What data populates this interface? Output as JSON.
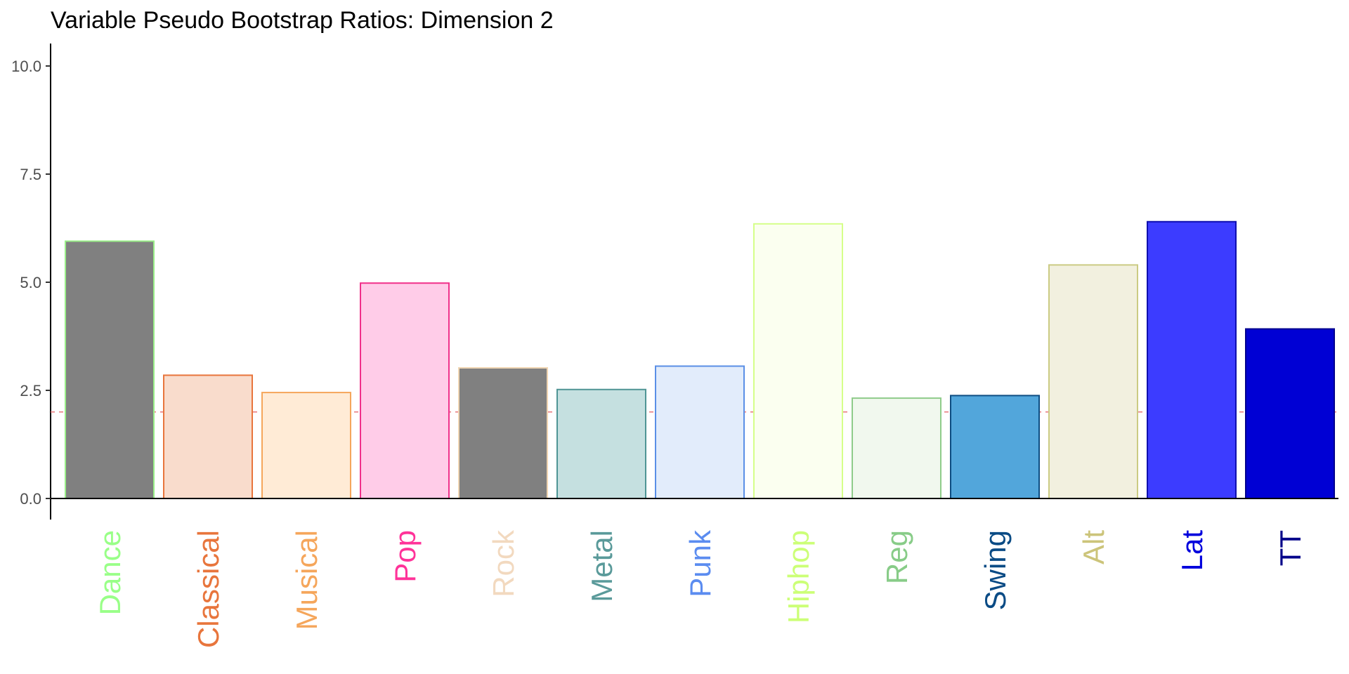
{
  "chart_data": {
    "type": "bar",
    "title": "Variable Pseudo Bootstrap Ratios: Dimension 2",
    "xlabel": "",
    "ylabel": "",
    "ylim": [
      -0.95,
      10.6
    ],
    "yticks": [
      0.0,
      2.5,
      5.0,
      7.5,
      10.0
    ],
    "ytick_labels": [
      "0.0",
      "2.5",
      "5.0",
      "7.5",
      "10.0"
    ],
    "threshold": 2,
    "threshold_color": "#E8767A",
    "grid": false,
    "categories": [
      "Dance",
      "Classical",
      "Musical",
      "Pop",
      "Rock",
      "Metal",
      "Punk",
      "Hiphop",
      "Reg",
      "Swing",
      "Alt",
      "Lat",
      "TT"
    ],
    "values": [
      5.95,
      2.85,
      2.45,
      4.98,
      3.02,
      2.52,
      3.06,
      6.35,
      2.32,
      2.38,
      5.4,
      6.4,
      3.92
    ],
    "fill_colors": [
      "#808080",
      "#F9DCCC",
      "#FFEBD6",
      "#FFCCE8",
      "#808080",
      "#C5E0E0",
      "#E2ECFB",
      "#FBFFF0",
      "#F1F8EE",
      "#52A6DB",
      "#F2F0DF",
      "#3C3CFF",
      "#0000D4"
    ],
    "stroke_colors": [
      "#99EE88",
      "#E8753C",
      "#F5A65B",
      "#F0308A",
      "#F0D5B2",
      "#4F9595",
      "#5A8FE6",
      "#D5FF8A",
      "#8FCC8A",
      "#0E4D82",
      "#CBCB83",
      "#0F0FAF",
      "#00008F"
    ],
    "label_colors": [
      "#99FF88",
      "#E8753C",
      "#F5A65B",
      "#FF3399",
      "#F2D9BF",
      "#5A9A9A",
      "#5B8CF0",
      "#CCFF77",
      "#88CC88",
      "#0A4B85",
      "#CCC47A",
      "#0000DD",
      "#00008A"
    ]
  }
}
